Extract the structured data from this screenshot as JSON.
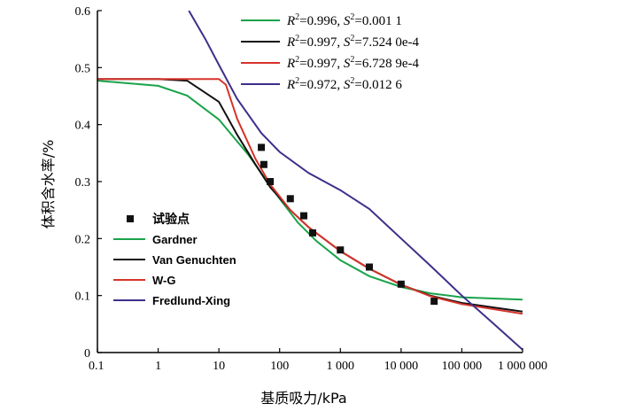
{
  "chart_data": {
    "type": "line",
    "xlabel": "基质吸力/kPa",
    "ylabel": "体积含水率/%",
    "x_scale": "log",
    "xlim": [
      0.1,
      1000000
    ],
    "ylim": [
      0,
      0.6
    ],
    "x_tick_labels": [
      "0.1",
      "1",
      "10",
      "100",
      "1 000",
      "10 000",
      "100 000",
      "1 000 000"
    ],
    "x_tick_values": [
      0.1,
      1,
      10,
      100,
      1000,
      10000,
      100000,
      1000000
    ],
    "y_tick_labels": [
      "0",
      "0.1",
      "0.2",
      "0.3",
      "0.4",
      "0.5",
      "0.6"
    ],
    "y_tick_values": [
      0,
      0.1,
      0.2,
      0.3,
      0.4,
      0.5,
      0.6
    ],
    "grid": false,
    "legend_position": "bottom-left",
    "fit_annotation_position": "top-right",
    "points_series": {
      "name": "试验点",
      "marker": "square",
      "x": [
        50,
        55,
        70,
        150,
        250,
        350,
        1000,
        3000,
        10000,
        35000
      ],
      "y": [
        0.36,
        0.33,
        0.3,
        0.27,
        0.24,
        0.21,
        0.18,
        0.15,
        0.12,
        0.09
      ]
    },
    "series": [
      {
        "name": "Gardner",
        "color": "#1aa34a",
        "fit": {
          "R2": "0.996",
          "S2": "0.001 1"
        },
        "x": [
          0.1,
          1,
          3,
          10,
          30,
          60,
          100,
          200,
          400,
          1000,
          3000,
          10000,
          30000,
          100000,
          1000000
        ],
        "y": [
          0.477,
          0.468,
          0.451,
          0.409,
          0.348,
          0.303,
          0.27,
          0.228,
          0.196,
          0.162,
          0.134,
          0.115,
          0.104,
          0.097,
          0.093
        ]
      },
      {
        "name": "Van Genuchten",
        "color": "#111111",
        "fit": {
          "R2": "0.997",
          "S2": "7.524 0e-4"
        },
        "x": [
          0.1,
          1,
          3,
          10,
          20,
          40,
          70,
          150,
          300,
          1000,
          3000,
          10000,
          30000,
          100000,
          1000000
        ],
        "y": [
          0.48,
          0.48,
          0.477,
          0.44,
          0.382,
          0.33,
          0.29,
          0.25,
          0.22,
          0.178,
          0.147,
          0.119,
          0.1,
          0.087,
          0.072
        ]
      },
      {
        "name": "W-G",
        "color": "#d6332a",
        "fit": {
          "R2": "0.997",
          "S2": "6.728 9e-4"
        },
        "x": [
          0.1,
          1,
          10,
          13,
          20,
          40,
          70,
          150,
          300,
          1000,
          3000,
          10000,
          30000,
          100000,
          1000000
        ],
        "y": [
          0.48,
          0.48,
          0.48,
          0.47,
          0.41,
          0.34,
          0.295,
          0.25,
          0.22,
          0.178,
          0.147,
          0.119,
          0.099,
          0.085,
          0.068
        ]
      },
      {
        "name": "Fredlund-Xing",
        "color": "#3d2f8a",
        "fit": {
          "R2": "0.972",
          "S2": "0.012 6"
        },
        "x": [
          3.2,
          6,
          10,
          20,
          50,
          100,
          300,
          1000,
          3000,
          10000,
          30000,
          100000,
          300000,
          1000000
        ],
        "y": [
          0.6,
          0.55,
          0.505,
          0.445,
          0.385,
          0.352,
          0.315,
          0.285,
          0.252,
          0.2,
          0.153,
          0.1,
          0.055,
          0.005
        ]
      }
    ]
  }
}
